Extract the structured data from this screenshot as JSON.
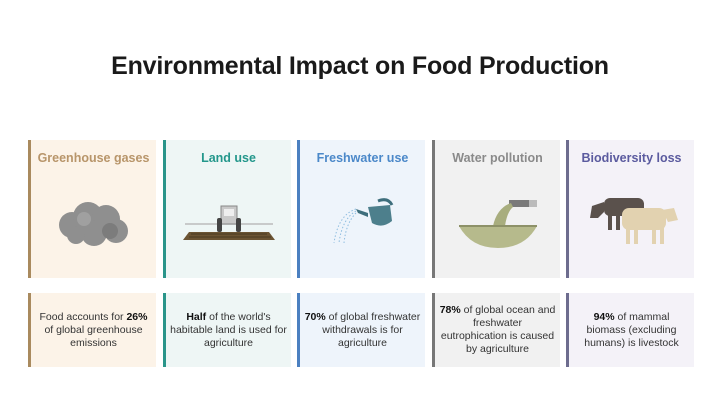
{
  "title": "Environmental Impact on Food Production",
  "cards": [
    {
      "title": "Greenhouse gases",
      "icon": "smoke-cloud-icon",
      "bold": "26%",
      "pre": "Food accounts for ",
      "post": " of global greenhouse emissions",
      "bg": "#fcf3e8",
      "bar": "#a98a5e",
      "color": "#b8956a"
    },
    {
      "title": "Land use",
      "icon": "tractor-field-icon",
      "bold": "Half",
      "pre": "",
      "post": " of the world's habitable land is used for agriculture",
      "bg": "#eef6f5",
      "bar": "#2a958a",
      "color": "#23978b"
    },
    {
      "title": "Freshwater use",
      "icon": "watering-can-icon",
      "bold": "70%",
      "pre": "",
      "post": " of global freshwater withdrawals is for agriculture",
      "bg": "#eef4fb",
      "bar": "#4b80c0",
      "color": "#4b88c9"
    },
    {
      "title": "Water pollution",
      "icon": "polluted-water-bowl-icon",
      "bold": "78%",
      "pre": "",
      "post": " of global ocean and freshwater eutrophication is caused by agriculture",
      "bg": "#f1f1f1",
      "bar": "#777777",
      "color": "#8a8a8a"
    },
    {
      "title": "Biodiversity loss",
      "icon": "cows-icon",
      "bold": "94%",
      "pre": "",
      "post": " of mammal biomass (excluding humans) is livestock",
      "bg": "#f4f2f8",
      "bar": "#6d6c8e",
      "color": "#5b5b9f"
    }
  ]
}
